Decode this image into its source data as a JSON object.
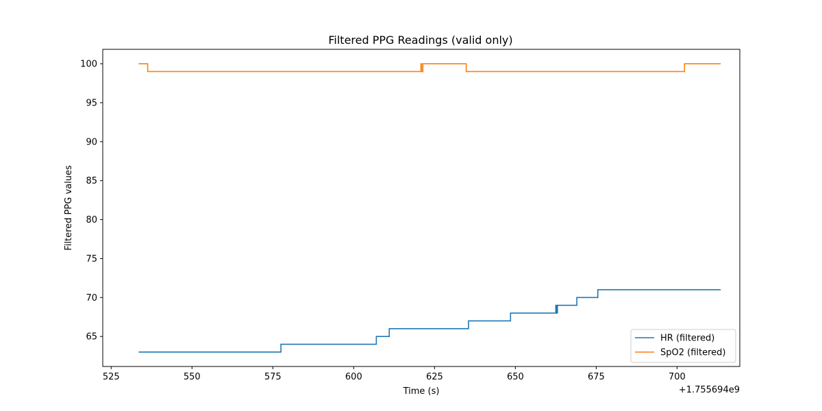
{
  "chart_data": {
    "type": "line",
    "title": "Filtered PPG Readings (valid only)",
    "xlabel": "Time (s)",
    "ylabel": "Filtered PPG values",
    "x_offset_label": "+1.755694e9",
    "xlim": [
      522.4,
      719.4
    ],
    "ylim": [
      61.15,
      101.85
    ],
    "x_ticks": [
      525,
      550,
      575,
      600,
      625,
      650,
      675,
      700
    ],
    "y_ticks": [
      65,
      70,
      75,
      80,
      85,
      90,
      95,
      100
    ],
    "grid": false,
    "legend_position": "lower-right",
    "drawstyle": "steps",
    "series": [
      {
        "name": "HR (filtered)",
        "color": "#1f77b4",
        "points": [
          [
            533.5,
            63
          ],
          [
            577.5,
            63
          ],
          [
            577.5,
            64
          ],
          [
            607.0,
            64
          ],
          [
            607.0,
            65
          ],
          [
            611.0,
            65
          ],
          [
            611.0,
            66
          ],
          [
            635.5,
            66
          ],
          [
            635.5,
            67
          ],
          [
            648.5,
            67
          ],
          [
            648.5,
            68
          ],
          [
            662.5,
            68
          ],
          [
            662.5,
            69
          ],
          [
            662.7,
            69
          ],
          [
            662.7,
            68
          ],
          [
            663.0,
            68
          ],
          [
            663.0,
            69
          ],
          [
            669.0,
            69
          ],
          [
            669.0,
            70
          ],
          [
            675.5,
            70
          ],
          [
            675.5,
            71
          ],
          [
            713.5,
            71
          ]
        ]
      },
      {
        "name": "SpO2 (filtered)",
        "color": "#ff7f0e",
        "points": [
          [
            533.5,
            100
          ],
          [
            536.3,
            100
          ],
          [
            536.3,
            99
          ],
          [
            620.8,
            99
          ],
          [
            620.8,
            100
          ],
          [
            621.0,
            100
          ],
          [
            621.0,
            99
          ],
          [
            621.4,
            99
          ],
          [
            621.4,
            100
          ],
          [
            634.8,
            100
          ],
          [
            634.8,
            99
          ],
          [
            702.3,
            99
          ],
          [
            702.3,
            100
          ],
          [
            713.5,
            100
          ]
        ]
      }
    ]
  }
}
